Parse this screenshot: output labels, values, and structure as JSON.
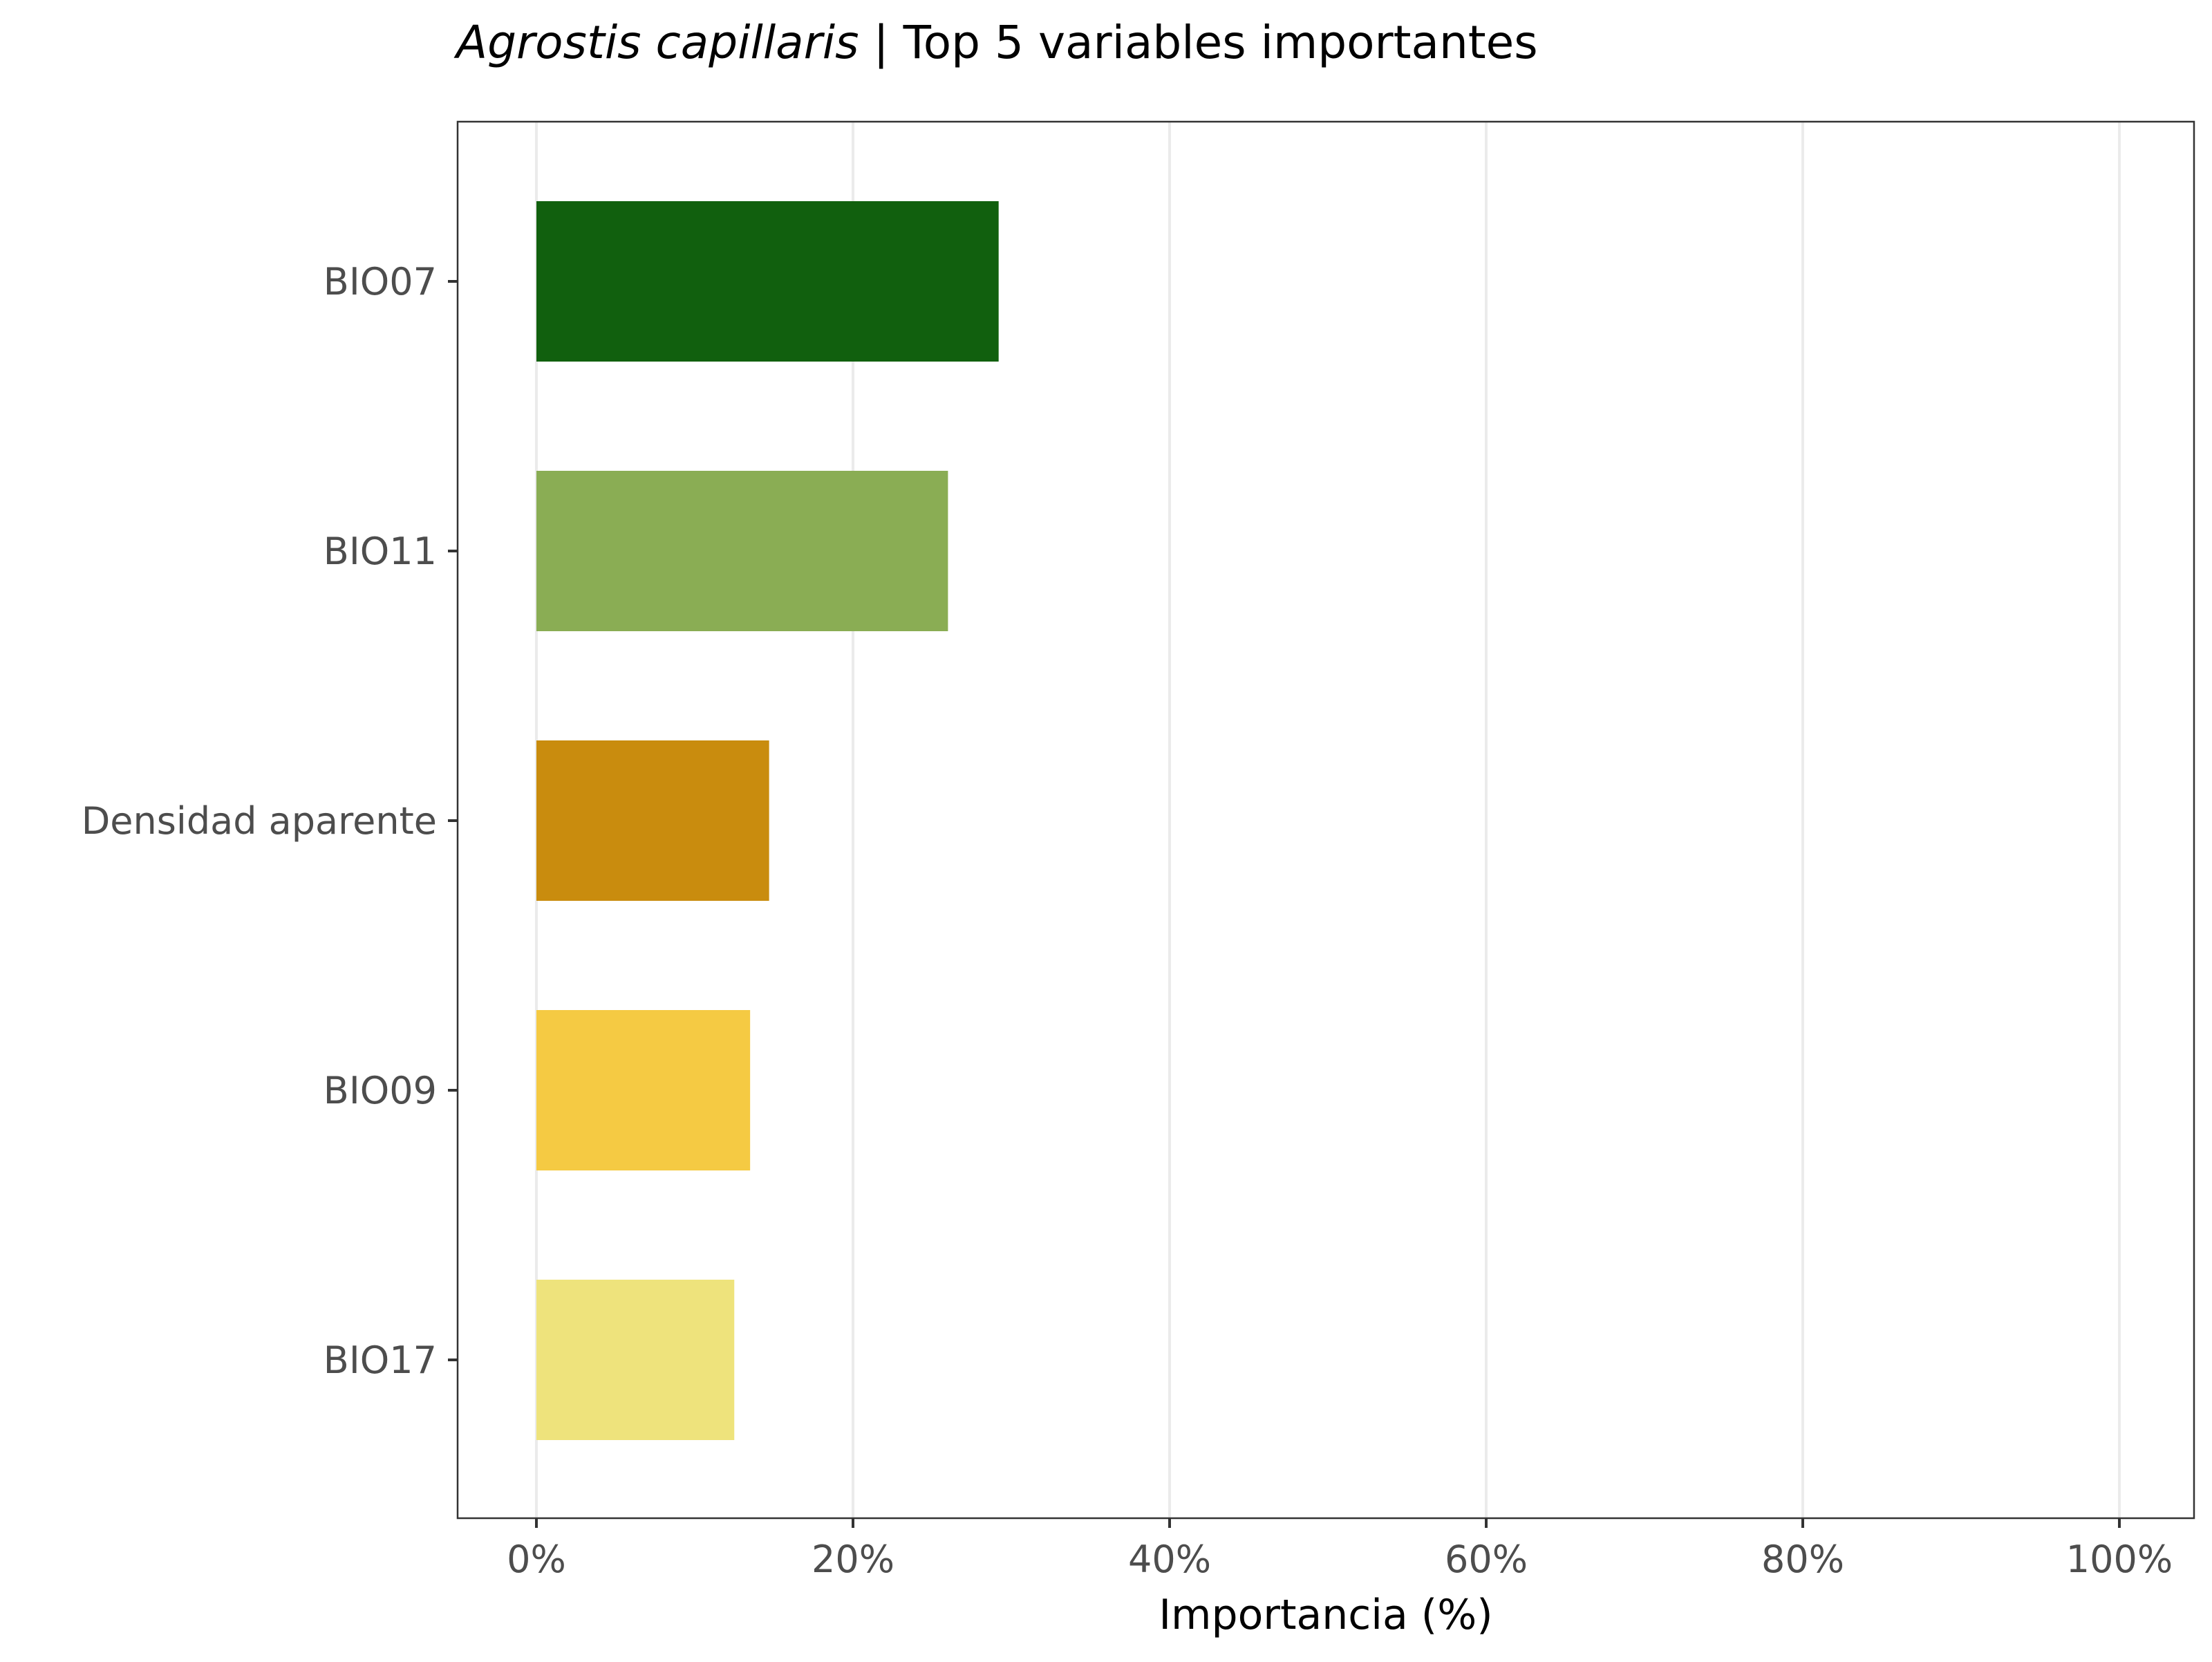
{
  "chart_data": {
    "type": "bar",
    "orientation": "horizontal",
    "title": {
      "species": "Agrostis capillaris",
      "separator": " | ",
      "text": "Top 5 variables importantes"
    },
    "xlabel": "Importancia (%)",
    "ylabel": "",
    "xlim": [
      0,
      100
    ],
    "x_ticks": [
      0,
      20,
      40,
      60,
      80,
      100
    ],
    "x_tick_labels": [
      "0%",
      "20%",
      "40%",
      "60%",
      "80%",
      "100%"
    ],
    "grid": true,
    "legend": "none",
    "categories": [
      "BIO07",
      "BIO11",
      "Densidad aparente",
      "BIO09",
      "BIO17"
    ],
    "values": [
      29.2,
      26.0,
      14.7,
      13.5,
      12.5
    ],
    "colors": [
      "#11600e",
      "#8aad54",
      "#c98c0e",
      "#f5ca43",
      "#eee37c"
    ]
  }
}
